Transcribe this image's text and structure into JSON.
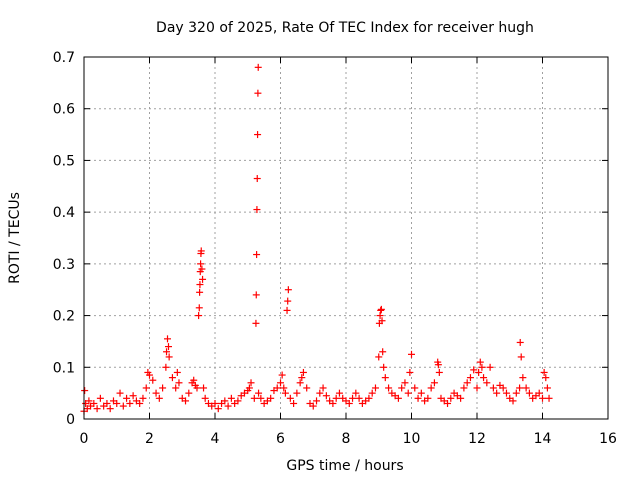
{
  "chart_data": {
    "type": "scatter",
    "title": "Day 320 of 2025, Rate Of TEC Index for receiver hugh",
    "xlabel": "GPS time / hours",
    "ylabel": "ROTI / TECUs",
    "xlim": [
      0,
      16
    ],
    "ylim": [
      0,
      0.7
    ],
    "x_ticks": [
      0,
      2,
      4,
      6,
      8,
      10,
      12,
      14,
      16
    ],
    "x_tick_labels": [
      "0",
      "2",
      "4",
      "6",
      "8",
      "10",
      "12",
      "14",
      "16"
    ],
    "y_ticks": [
      0,
      0.1,
      0.2,
      0.3,
      0.4,
      0.5,
      0.6,
      0.7
    ],
    "y_tick_labels": [
      "0",
      "0.1",
      "0.2",
      "0.3",
      "0.4",
      "0.5",
      "0.6",
      "0.7"
    ],
    "grid": true,
    "marker": "+",
    "color": "#ff0000",
    "series": [
      {
        "name": "ROTI",
        "x": [
          0.0,
          0.02,
          0.05,
          0.1,
          0.15,
          0.2,
          0.3,
          0.4,
          0.5,
          0.6,
          0.7,
          0.8,
          0.9,
          1.0,
          1.1,
          1.2,
          1.3,
          1.4,
          1.5,
          1.6,
          1.7,
          1.8,
          1.9,
          1.95,
          2.0,
          2.1,
          2.2,
          2.3,
          2.4,
          2.5,
          2.52,
          2.55,
          2.58,
          2.6,
          2.7,
          2.8,
          2.85,
          2.9,
          3.0,
          3.1,
          3.2,
          3.3,
          3.35,
          3.4,
          3.45,
          3.5,
          3.52,
          3.53,
          3.54,
          3.55,
          3.56,
          3.57,
          3.58,
          3.6,
          3.62,
          3.65,
          3.7,
          3.8,
          3.9,
          4.0,
          4.1,
          4.2,
          4.3,
          4.4,
          4.5,
          4.6,
          4.7,
          4.8,
          4.9,
          5.0,
          5.05,
          5.1,
          5.2,
          5.25,
          5.26,
          5.27,
          5.28,
          5.29,
          5.3,
          5.31,
          5.32,
          5.33,
          5.4,
          5.5,
          5.6,
          5.7,
          5.8,
          5.9,
          6.0,
          6.05,
          6.1,
          6.15,
          6.2,
          6.22,
          6.24,
          6.3,
          6.4,
          6.5,
          6.6,
          6.65,
          6.7,
          6.8,
          6.9,
          7.0,
          7.1,
          7.2,
          7.3,
          7.4,
          7.5,
          7.6,
          7.7,
          7.8,
          7.9,
          8.0,
          8.1,
          8.2,
          8.3,
          8.4,
          8.5,
          8.6,
          8.7,
          8.8,
          8.9,
          9.0,
          9.02,
          9.04,
          9.06,
          9.08,
          9.1,
          9.12,
          9.15,
          9.2,
          9.3,
          9.4,
          9.5,
          9.6,
          9.7,
          9.8,
          9.9,
          9.95,
          10.0,
          10.1,
          10.2,
          10.3,
          10.4,
          10.5,
          10.6,
          10.7,
          10.8,
          10.82,
          10.85,
          10.9,
          11.0,
          11.1,
          11.2,
          11.3,
          11.4,
          11.5,
          11.6,
          11.7,
          11.8,
          11.9,
          12.0,
          12.05,
          12.1,
          12.15,
          12.2,
          12.3,
          12.4,
          12.5,
          12.6,
          12.7,
          12.8,
          12.9,
          13.0,
          13.1,
          13.2,
          13.3,
          13.32,
          13.35,
          13.4,
          13.5,
          13.6,
          13.7,
          13.8,
          13.9,
          14.0,
          14.05,
          14.1,
          14.15,
          14.2
        ],
        "y": [
          0.015,
          0.055,
          0.03,
          0.02,
          0.035,
          0.025,
          0.03,
          0.02,
          0.04,
          0.025,
          0.03,
          0.02,
          0.035,
          0.03,
          0.05,
          0.025,
          0.04,
          0.03,
          0.045,
          0.035,
          0.03,
          0.04,
          0.06,
          0.09,
          0.085,
          0.075,
          0.05,
          0.04,
          0.06,
          0.1,
          0.13,
          0.155,
          0.14,
          0.12,
          0.08,
          0.06,
          0.09,
          0.07,
          0.04,
          0.035,
          0.05,
          0.07,
          0.075,
          0.065,
          0.06,
          0.2,
          0.215,
          0.245,
          0.26,
          0.285,
          0.3,
          0.32,
          0.325,
          0.29,
          0.27,
          0.06,
          0.04,
          0.03,
          0.025,
          0.03,
          0.02,
          0.03,
          0.035,
          0.025,
          0.04,
          0.03,
          0.035,
          0.045,
          0.05,
          0.055,
          0.06,
          0.07,
          0.04,
          0.185,
          0.24,
          0.318,
          0.405,
          0.465,
          0.55,
          0.63,
          0.68,
          0.05,
          0.04,
          0.03,
          0.035,
          0.04,
          0.055,
          0.06,
          0.07,
          0.085,
          0.06,
          0.05,
          0.21,
          0.228,
          0.25,
          0.04,
          0.03,
          0.05,
          0.07,
          0.08,
          0.09,
          0.06,
          0.03,
          0.025,
          0.035,
          0.05,
          0.06,
          0.045,
          0.035,
          0.03,
          0.04,
          0.05,
          0.04,
          0.035,
          0.03,
          0.04,
          0.05,
          0.04,
          0.03,
          0.035,
          0.04,
          0.05,
          0.06,
          0.12,
          0.185,
          0.2,
          0.21,
          0.212,
          0.19,
          0.13,
          0.1,
          0.08,
          0.06,
          0.05,
          0.045,
          0.04,
          0.06,
          0.07,
          0.05,
          0.09,
          0.125,
          0.06,
          0.04,
          0.05,
          0.035,
          0.04,
          0.06,
          0.07,
          0.11,
          0.105,
          0.09,
          0.04,
          0.035,
          0.03,
          0.04,
          0.05,
          0.045,
          0.04,
          0.06,
          0.07,
          0.08,
          0.095,
          0.06,
          0.09,
          0.11,
          0.1,
          0.08,
          0.07,
          0.1,
          0.06,
          0.05,
          0.065,
          0.06,
          0.05,
          0.04,
          0.035,
          0.05,
          0.06,
          0.148,
          0.12,
          0.08,
          0.06,
          0.05,
          0.04,
          0.045,
          0.05,
          0.04,
          0.09,
          0.08,
          0.06,
          0.04
        ]
      }
    ]
  }
}
